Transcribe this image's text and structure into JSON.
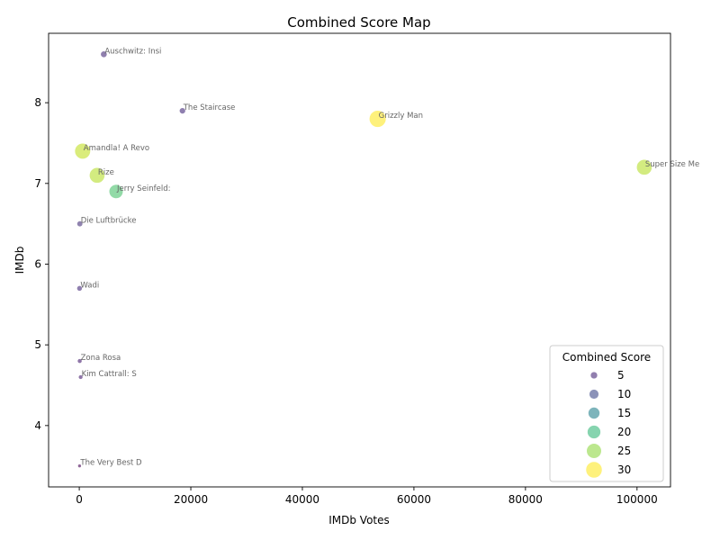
{
  "chart_data": {
    "type": "scatter",
    "title": "Combined Score Map",
    "xlabel": "IMDb Votes",
    "ylabel": "IMDb",
    "xlim": [
      -5500,
      106000
    ],
    "ylim": [
      3.24,
      8.86
    ],
    "x_ticks": [
      0,
      20000,
      40000,
      60000,
      80000,
      100000
    ],
    "y_ticks": [
      4,
      5,
      6,
      7,
      8
    ],
    "grid": false,
    "legend": {
      "title": "Combined Score",
      "placement": "lower-right",
      "entries": [
        {
          "label": "5",
          "size": 5,
          "color": "#482878"
        },
        {
          "label": "10",
          "size": 10,
          "color": "#3e4a89"
        },
        {
          "label": "15",
          "size": 15,
          "color": "#26828e"
        },
        {
          "label": "20",
          "size": 20,
          "color": "#35b779"
        },
        {
          "label": "25",
          "size": 25,
          "color": "#90d743"
        },
        {
          "label": "30",
          "size": 30,
          "color": "#fde725"
        }
      ]
    },
    "points": [
      {
        "label": "Auschwitz: Insi",
        "x": 4400,
        "y": 8.6,
        "score": 4,
        "color": "#462a78"
      },
      {
        "label": "The Staircase",
        "x": 18500,
        "y": 7.9,
        "score": 3.5,
        "color": "#45297a"
      },
      {
        "label": "Grizzly Man",
        "x": 53500,
        "y": 7.8,
        "score": 32,
        "color": "#fde725"
      },
      {
        "label": "Super Size Me",
        "x": 101300,
        "y": 7.2,
        "score": 27,
        "color": "#b5de2b"
      },
      {
        "label": "Amandla! A Revo",
        "x": 600,
        "y": 7.4,
        "score": 28,
        "color": "#c2df23"
      },
      {
        "label": "Rize",
        "x": 3200,
        "y": 7.1,
        "score": 27,
        "color": "#b5de2b"
      },
      {
        "label": "Jerry Seinfeld:",
        "x": 6600,
        "y": 6.9,
        "score": 22,
        "color": "#4ac16d"
      },
      {
        "label": "Die Luftbrücke",
        "x": 100,
        "y": 6.5,
        "score": 3,
        "color": "#46307a"
      },
      {
        "label": "Wadi",
        "x": 50,
        "y": 5.7,
        "score": 2.5,
        "color": "#45297a"
      },
      {
        "label": "Zona Rosa",
        "x": 80,
        "y": 4.8,
        "score": 1.5,
        "color": "#441a6e"
      },
      {
        "label": "Kim Cattrall: S",
        "x": 250,
        "y": 4.6,
        "score": 1.3,
        "color": "#441a6e"
      },
      {
        "label": "The Very Best D",
        "x": 50,
        "y": 3.5,
        "score": 0.5,
        "color": "#440154"
      }
    ]
  }
}
